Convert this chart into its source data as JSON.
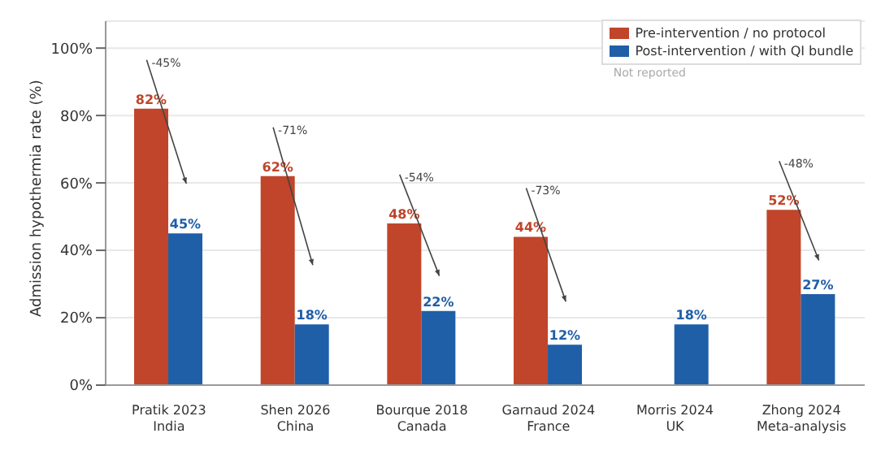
{
  "chart_data": {
    "type": "bar",
    "categories": [
      "Pratik 2023\nIndia",
      "Shen 2026\nChina",
      "Bourque 2018\nCanada",
      "Garnaud 2024\nFrance",
      "Morris 2024\nUK",
      "Zhong 2024\nMeta-analysis"
    ],
    "series": [
      {
        "name": "Pre-intervention / no protocol",
        "color": "#c0452a",
        "values": [
          82,
          62,
          48,
          44,
          null,
          52
        ],
        "value_labels": [
          "82%",
          "62%",
          "48%",
          "44%",
          null,
          "52%"
        ]
      },
      {
        "name": "Post-intervention / with QI bundle",
        "color": "#1f5fa8",
        "values": [
          45,
          18,
          22,
          12,
          18,
          27
        ],
        "value_labels": [
          "45%",
          "18%",
          "22%",
          "12%",
          "18%",
          "27%"
        ]
      }
    ],
    "ylabel": "Admission hypothermia rate (%)",
    "ylim": [
      0,
      108
    ],
    "yticks": [
      {
        "value": 0,
        "label": "0%"
      },
      {
        "value": 20,
        "label": "20%"
      },
      {
        "value": 40,
        "label": "40%"
      },
      {
        "value": 60,
        "label": "60%"
      },
      {
        "value": 80,
        "label": "80%"
      },
      {
        "value": 100,
        "label": "100%"
      }
    ],
    "grid": "y",
    "legend": "top right",
    "annotations": [
      "-45%",
      "-71%",
      "-54%",
      "-73%",
      "Not reported",
      "-48%"
    ]
  }
}
